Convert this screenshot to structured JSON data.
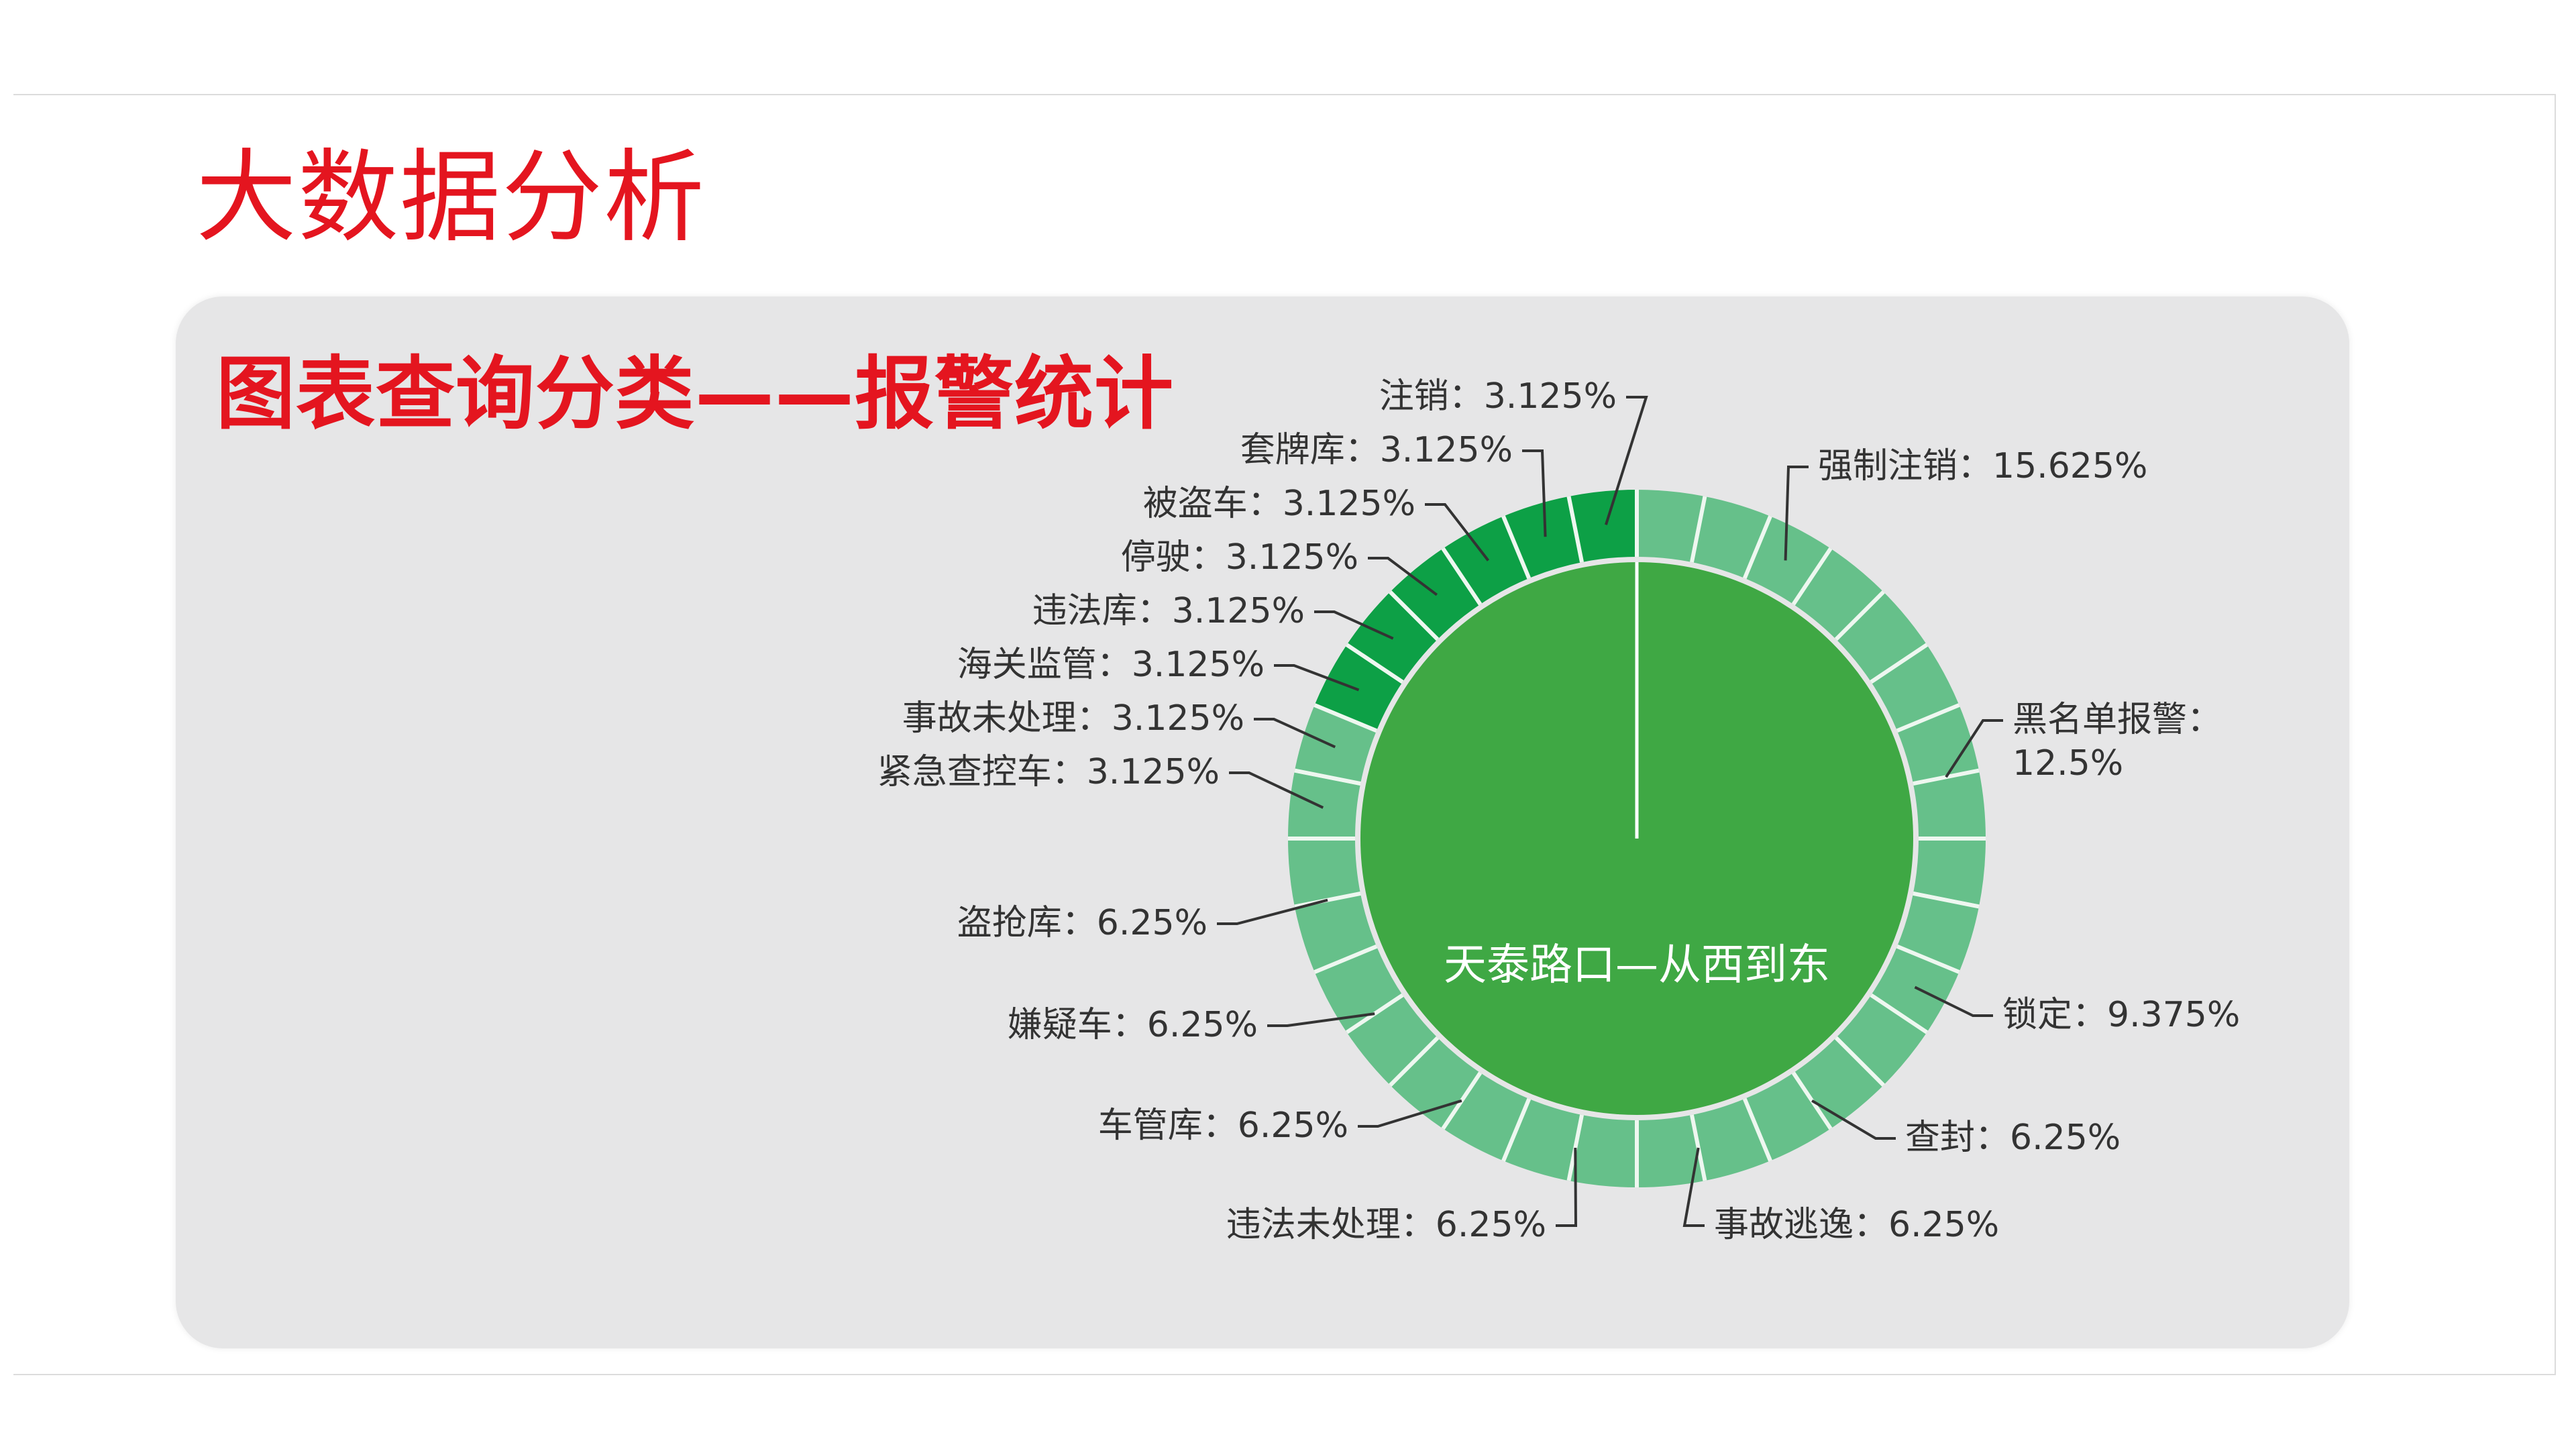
{
  "page": {
    "title": "大数据分析"
  },
  "panel": {
    "title": "图表查询分类——报警统计"
  },
  "chart_data": {
    "type": "pie",
    "center_label": "天泰路口—从西到东",
    "colors": {
      "dark": "#0da046",
      "light": "#66c08a",
      "inner": "#3fa844",
      "divider": "#eef7f0"
    },
    "slices": [
      {
        "name": "强制注销",
        "value": 15.625,
        "label": "强制注销：15.625%",
        "tone": "light"
      },
      {
        "name": "黑名单报警",
        "value": 12.5,
        "label": "黑名单报警：",
        "label2": "12.5%",
        "tone": "light"
      },
      {
        "name": "锁定",
        "value": 9.375,
        "label": "锁定：9.375%",
        "tone": "light"
      },
      {
        "name": "查封",
        "value": 6.25,
        "label": "查封：6.25%",
        "tone": "light"
      },
      {
        "name": "事故逃逸",
        "value": 6.25,
        "label": "事故逃逸：6.25%",
        "tone": "light"
      },
      {
        "name": "违法未处理",
        "value": 6.25,
        "label": "违法未处理：6.25%",
        "tone": "light"
      },
      {
        "name": "车管库",
        "value": 6.25,
        "label": "车管库：6.25%",
        "tone": "light"
      },
      {
        "name": "嫌疑车",
        "value": 6.25,
        "label": "嫌疑车：6.25%",
        "tone": "light"
      },
      {
        "name": "盗抢库",
        "value": 6.25,
        "label": "盗抢库：6.25%",
        "tone": "light"
      },
      {
        "name": "紧急查控车",
        "value": 3.125,
        "label": "紧急查控车：3.125%",
        "tone": "light"
      },
      {
        "name": "事故未处理",
        "value": 3.125,
        "label": "事故未处理：3.125%",
        "tone": "light"
      },
      {
        "name": "海关监管",
        "value": 3.125,
        "label": "海关监管：3.125%",
        "tone": "dark"
      },
      {
        "name": "违法库",
        "value": 3.125,
        "label": "违法库：3.125%",
        "tone": "dark"
      },
      {
        "name": "停驶",
        "value": 3.125,
        "label": "停驶：3.125%",
        "tone": "dark"
      },
      {
        "name": "被盗车",
        "value": 3.125,
        "label": "被盗车：3.125%",
        "tone": "dark"
      },
      {
        "name": "套牌库",
        "value": 3.125,
        "label": "套牌库：3.125%",
        "tone": "dark"
      },
      {
        "name": "注销",
        "value": 3.125,
        "label": "注销：3.125%",
        "tone": "dark"
      }
    ]
  }
}
